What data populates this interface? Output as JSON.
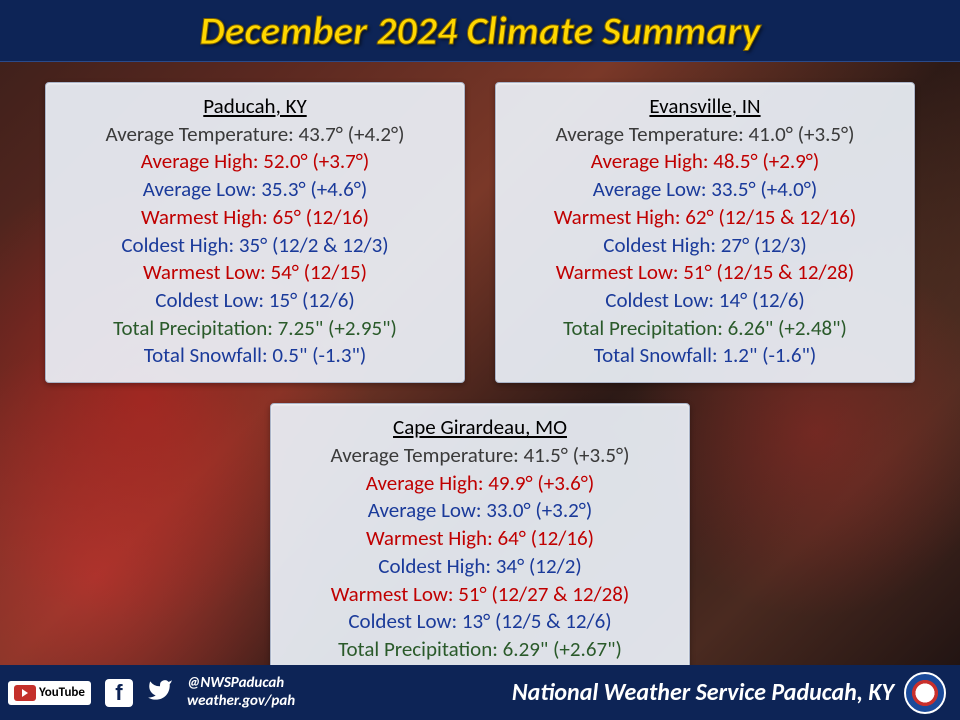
{
  "title": "December 2024 Climate Summary",
  "colors": {
    "header_bg": "#0d2456",
    "title_color": "#ffd700",
    "card_bg": "rgba(235,240,248,0.93)",
    "text_black": "#3a3a3a",
    "text_red": "#c00000",
    "text_blue": "#1a3a9a",
    "text_green": "#2a5a2a"
  },
  "cards": [
    {
      "city": "Paducah, KY",
      "rows": [
        {
          "label": "Average Temperature",
          "value": "43.7° (+4.2°)",
          "color": "black"
        },
        {
          "label": "Average High",
          "value": "52.0° (+3.7°)",
          "color": "red"
        },
        {
          "label": "Average Low",
          "value": "35.3° (+4.6°)",
          "color": "blue"
        },
        {
          "label": "Warmest High",
          "value": "65° (12/16)",
          "color": "red"
        },
        {
          "label": "Coldest High",
          "value": "35° (12/2 & 12/3)",
          "color": "blue"
        },
        {
          "label": "Warmest Low",
          "value": "54° (12/15)",
          "color": "red"
        },
        {
          "label": "Coldest Low",
          "value": "15° (12/6)",
          "color": "blue"
        },
        {
          "label": "Total Precipitation",
          "value": "7.25\" (+2.95\")",
          "color": "green"
        },
        {
          "label": "Total Snowfall",
          "value": "0.5\" (-1.3\")",
          "color": "blue"
        }
      ]
    },
    {
      "city": "Evansville, IN",
      "rows": [
        {
          "label": "Average Temperature",
          "value": "41.0° (+3.5°)",
          "color": "black"
        },
        {
          "label": "Average High",
          "value": "48.5° (+2.9°)",
          "color": "red"
        },
        {
          "label": "Average Low",
          "value": "33.5° (+4.0°)",
          "color": "blue"
        },
        {
          "label": "Warmest High",
          "value": "62° (12/15 & 12/16)",
          "color": "red"
        },
        {
          "label": "Coldest High",
          "value": "27° (12/3)",
          "color": "blue"
        },
        {
          "label": "Warmest Low",
          "value": "51° (12/15 & 12/28)",
          "color": "red"
        },
        {
          "label": "Coldest Low",
          "value": "14° (12/6)",
          "color": "blue"
        },
        {
          "label": "Total Precipitation",
          "value": "6.26\" (+2.48\")",
          "color": "green"
        },
        {
          "label": "Total Snowfall",
          "value": "1.2\" (-1.6\")",
          "color": "blue"
        }
      ]
    },
    {
      "city": "Cape Girardeau, MO",
      "rows": [
        {
          "label": "Average Temperature",
          "value": "41.5° (+3.5°)",
          "color": "black"
        },
        {
          "label": "Average High",
          "value": "49.9° (+3.6°)",
          "color": "red"
        },
        {
          "label": "Average Low",
          "value": "33.0° (+3.2°)",
          "color": "blue"
        },
        {
          "label": "Warmest High",
          "value": "64° (12/16)",
          "color": "red"
        },
        {
          "label": "Coldest High",
          "value": "34° (12/2)",
          "color": "blue"
        },
        {
          "label": "Warmest Low",
          "value": "51° (12/27 & 12/28)",
          "color": "red"
        },
        {
          "label": "Coldest Low",
          "value": "13° (12/5 & 12/6)",
          "color": "blue"
        },
        {
          "label": "Total Precipitation",
          "value": "6.29\" (+2.67\")",
          "color": "green"
        }
      ]
    }
  ],
  "footer": {
    "handle": "@NWSPaducah",
    "url": "weather.gov/pah",
    "org": "National Weather Service Paducah, KY"
  }
}
